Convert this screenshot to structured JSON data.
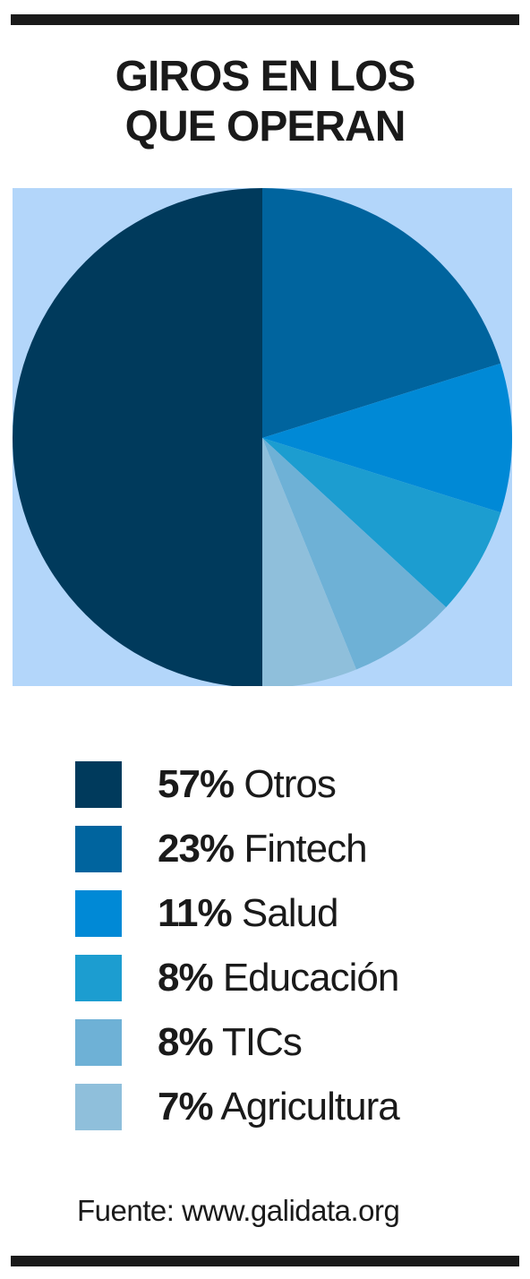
{
  "title_lines": [
    "GIROS EN LOS",
    "QUE OPERAN"
  ],
  "source": "Fuente: www.galidata.org",
  "chart_data": {
    "type": "pie",
    "title": "GIROS EN LOS QUE OPERAN",
    "background_color": "#b3d6fa",
    "slices": [
      {
        "pct_label": "57%",
        "name": "Otros",
        "value": 57,
        "color": "#003a5c"
      },
      {
        "pct_label": "23%",
        "name": "Fintech",
        "value": 23,
        "color": "#00649e"
      },
      {
        "pct_label": "11%",
        "name": "Salud",
        "value": 11,
        "color": "#0089d6"
      },
      {
        "pct_label": "8%",
        "name": "Educación",
        "value": 8,
        "color": "#1c9dd0"
      },
      {
        "pct_label": "8%",
        "name": "TICs",
        "value": 8,
        "color": "#6eb1d6"
      },
      {
        "pct_label": "7%",
        "name": "Agricultura",
        "value": 7,
        "color": "#8fbfdb"
      }
    ],
    "legend_position": "bottom",
    "start_angle_deg": 0,
    "draw_order": [
      "Fintech",
      "Salud",
      "Educación",
      "TICs",
      "Agricultura",
      "Otros"
    ]
  }
}
